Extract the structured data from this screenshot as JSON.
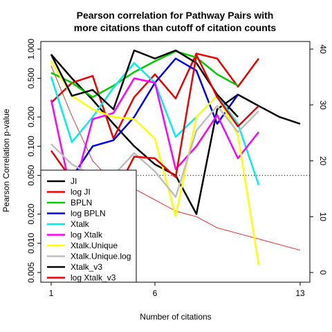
{
  "chart_data": {
    "type": "line",
    "title_lines": [
      "Pearson correlation for Pathway Pairs with",
      "more citations than cutoff of citation counts"
    ],
    "xlabel": "Number of citations",
    "ylabel": "Pearson Correlation p-value",
    "x_range": [
      1,
      13
    ],
    "x_ticks": [
      1,
      6,
      13
    ],
    "x_tick_labels": [
      "1",
      "6",
      "13"
    ],
    "y_left": {
      "scale": "log10",
      "range": [
        0.005,
        1.0
      ],
      "ticks": [
        0.005,
        0.01,
        0.02,
        0.05,
        0.1,
        0.2,
        0.5,
        1.0
      ],
      "tick_labels": [
        "0.005",
        "0.010",
        "0.020",
        "0.050",
        "0.100",
        "0.200",
        "0.500",
        "1.000"
      ]
    },
    "y_right": {
      "scale": "linear",
      "range": [
        0,
        40
      ],
      "ticks": [
        0,
        10,
        20,
        30,
        40
      ],
      "tick_labels": [
        "0",
        "10",
        "20",
        "30",
        "40"
      ]
    },
    "reference_line": {
      "y": 0.05,
      "style": "dotted"
    },
    "x": [
      1,
      2,
      3,
      4,
      5,
      6,
      7,
      8,
      9,
      10,
      11,
      12,
      13
    ],
    "series": [
      {
        "name": "JI",
        "color": "#000000",
        "lwd": 2.5,
        "values": [
          0.88,
          0.5,
          0.3,
          0.17,
          0.1,
          0.065,
          0.05,
          0.02,
          0.24,
          0.34,
          0.26,
          0.2,
          0.17
        ]
      },
      {
        "name": "log JI",
        "color": "#ee0000",
        "lwd": 2.5,
        "values": [
          0.28,
          0.45,
          0.53,
          0.12,
          0.32,
          0.55,
          0.31,
          0.9,
          0.8,
          0.41,
          0.8,
          null,
          null
        ]
      },
      {
        "name": "BPLN",
        "color": "#00cc00",
        "lwd": 2.5,
        "values": [
          0.57,
          0.45,
          0.32,
          0.42,
          0.58,
          0.75,
          0.95,
          0.82,
          0.55,
          0.42,
          null,
          null,
          null
        ]
      },
      {
        "name": "log BPLN",
        "color": "#0000ee",
        "lwd": 2.5,
        "values": [
          0.04,
          0.048,
          0.1,
          0.115,
          0.2,
          0.45,
          0.8,
          0.6,
          0.17,
          0.34,
          null,
          null,
          null
        ]
      },
      {
        "name": "Xtalk",
        "color": "#00eeee",
        "lwd": 2.5,
        "values": [
          0.52,
          0.11,
          0.2,
          0.4,
          0.72,
          0.45,
          0.125,
          0.2,
          0.33,
          0.17,
          0.04,
          null,
          null
        ]
      },
      {
        "name": "log Xtalk",
        "color": "#ff00ff",
        "lwd": 2.5,
        "values": [
          0.3,
          0.03,
          0.19,
          0.22,
          0.5,
          0.45,
          0.058,
          0.1,
          0.21,
          0.075,
          0.14,
          null,
          null
        ]
      },
      {
        "name": "Xtalk.Unique",
        "color": "#ffff00",
        "lwd": 2.5,
        "values": [
          0.75,
          0.33,
          0.24,
          0.2,
          0.19,
          0.12,
          0.019,
          0.2,
          0.33,
          0.13,
          0.006,
          null,
          null
        ]
      },
      {
        "name": "Xtalk.Unique.log",
        "color": "#bebebe",
        "lwd": 2.5,
        "values": [
          0.105,
          0.065,
          0.05,
          0.05,
          0.085,
          0.055,
          0.03,
          0.145,
          0.26,
          0.14,
          0.23,
          null,
          null
        ]
      },
      {
        "name": "Xtalk_v3",
        "color": "#000000",
        "lwd": 2.5,
        "values": [
          0.88,
          0.33,
          0.38,
          0.24,
          0.97,
          0.8,
          0.97,
          0.72,
          0.34,
          0.2,
          null,
          null,
          null
        ]
      },
      {
        "name": "log Xtalk_v3",
        "color": "#ee0000",
        "lwd": 2.5,
        "values": [
          0.09,
          0.045,
          0.035,
          0.03,
          0.078,
          0.075,
          0.048,
          0.87,
          0.32,
          0.16,
          0.26,
          null,
          null
        ]
      }
    ],
    "counts_series": {
      "axis": "right",
      "color": "#ee0000",
      "lwd": 0.8,
      "x": [
        1,
        2,
        3,
        4,
        5,
        6,
        7,
        8,
        9,
        10,
        11,
        12,
        13
      ],
      "values": [
        37,
        28,
        20,
        16,
        15,
        13,
        11,
        10,
        8,
        7,
        6,
        5,
        4
      ]
    },
    "legend": {
      "position": "bottom-left"
    }
  }
}
